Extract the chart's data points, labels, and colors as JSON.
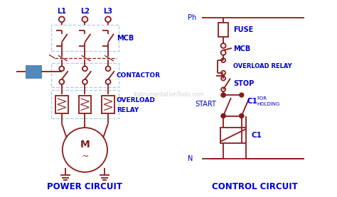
{
  "background_color": "#ffffff",
  "dark_red": "#8B1A1A",
  "blue": "#0000CD",
  "watermark_color": "#BBBBBB",
  "watermark_text": "InstrumentationTools.com",
  "title_left": "POWER CIRCUIT",
  "title_right": "CONTROL CIRCUIT"
}
